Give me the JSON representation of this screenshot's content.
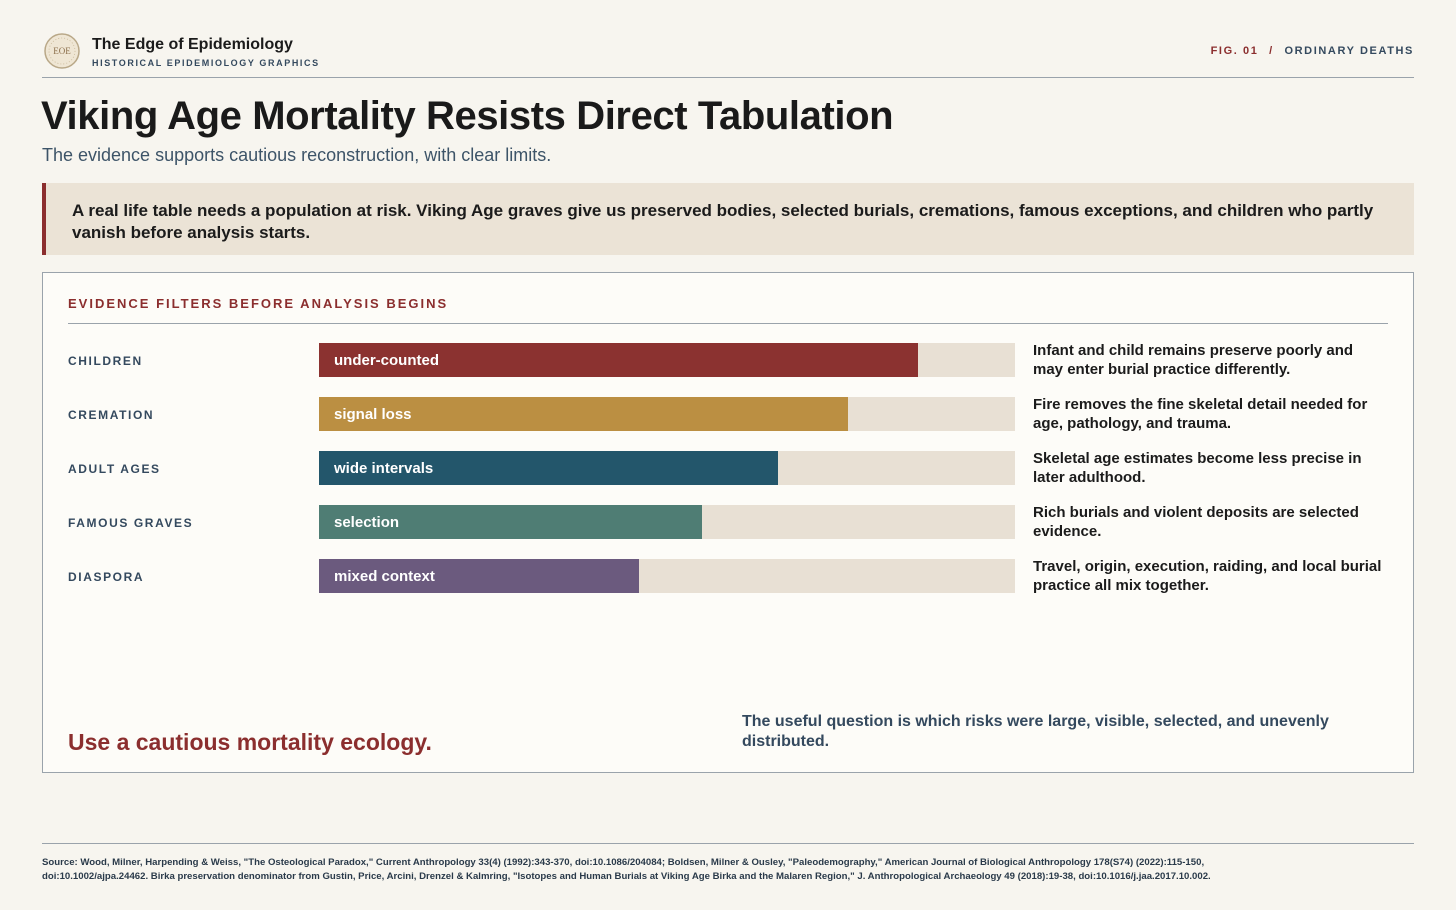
{
  "header": {
    "logo": "EOE",
    "site": "The Edge of Epidemiology",
    "tagline": "HISTORICAL EPIDEMIOLOGY GRAPHICS",
    "fig": "FIG. 01",
    "separator": "/",
    "section": "ORDINARY DEATHS"
  },
  "title": "Viking Age Mortality Resists Direct Tabulation",
  "subtitle": "The evidence supports cautious reconstruction, with clear limits.",
  "callout": "A real life table needs a population at risk. Viking Age graves give us preserved bodies, selected burials, cremations, famous exceptions, and children who partly vanish before analysis starts.",
  "chart_data": {
    "type": "bar",
    "title": "EVIDENCE FILTERS BEFORE ANALYSIS BEGINS",
    "categories": [
      "CHILDREN",
      "CREMATION",
      "ADULT AGES",
      "FAMOUS GRAVES",
      "DIASPORA"
    ],
    "bar_labels": [
      "under-counted",
      "signal loss",
      "wide intervals",
      "selection",
      "mixed context"
    ],
    "notes": [
      "Infant and child remains preserve poorly and may enter burial practice differently.",
      "Fire removes the fine skeletal detail needed for age, pathology, and trauma.",
      "Skeletal age estimates become less precise in later adulthood.",
      "Rich burials and violent deposits are selected evidence.",
      "Travel, origin, execution, raiding, and local burial practice all mix together."
    ],
    "values": [
      86,
      76,
      66,
      55,
      46
    ],
    "colors": [
      "#8b3230",
      "#bb8f42",
      "#23566b",
      "#4f7d74",
      "#6b5a7e"
    ],
    "track_color": "#e8e0d4",
    "xlim": [
      0,
      100
    ]
  },
  "conclusion": "Use a cautious mortality ecology.",
  "takeaway": "The useful question is which risks were large, visible, selected, and unevenly distributed.",
  "source": [
    "Source: Wood, Milner, Harpending & Weiss, \"The Osteological Paradox,\" Current Anthropology 33(4) (1992):343-370, doi:10.1086/204084; Boldsen, Milner & Ousley, \"Paleodemography,\" American Journal of Biological Anthropology 178(S74) (2022):115-150,",
    "doi:10.1002/ajpa.24462. Birka preservation denominator from Gustin, Price, Arcini, Drenzel & Kalmring, \"Isotopes and Human Burials at Viking Age Birka and the Malaren Region,\" J. Anthropological Archaeology 49 (2018):19-38, doi:10.1016/j.jaa.2017.10.002."
  ]
}
